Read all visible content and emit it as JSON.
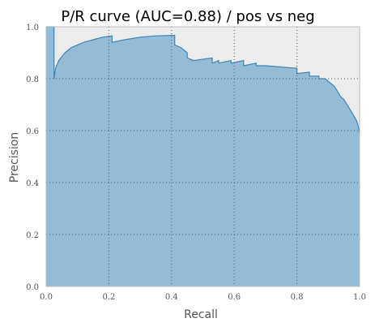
{
  "chart_data": {
    "type": "area",
    "title": "P/R curve (AUC=0.88) / pos vs neg",
    "xlabel": "Recall",
    "ylabel": "Precision",
    "xlim": [
      0.0,
      1.0
    ],
    "ylim": [
      0.0,
      1.0
    ],
    "xticks": [
      "0.0",
      "0.2",
      "0.4",
      "0.6",
      "0.8",
      "1.0"
    ],
    "yticks": [
      "0.0",
      "0.2",
      "0.4",
      "0.6",
      "0.8",
      "1.0"
    ],
    "grid": true,
    "legend": "none",
    "colors": {
      "fill": "#94bcd6",
      "line": "#3d86b3",
      "background": "#ececec",
      "frame": "#bdbdbd",
      "grid": "#555555"
    },
    "series": [
      {
        "x": [
          0.0,
          0.025,
          0.025,
          0.03,
          0.04,
          0.06,
          0.08,
          0.1,
          0.12,
          0.15,
          0.18,
          0.21,
          0.21,
          0.25,
          0.3,
          0.35,
          0.4,
          0.41,
          0.41,
          0.43,
          0.45,
          0.45,
          0.47,
          0.53,
          0.53,
          0.55,
          0.55,
          0.59,
          0.59,
          0.63,
          0.63,
          0.67,
          0.67,
          0.7,
          0.8,
          0.8,
          0.84,
          0.84,
          0.87,
          0.87,
          0.89,
          0.9,
          0.91,
          0.92,
          0.93,
          0.94,
          0.95,
          0.96,
          0.97,
          0.98,
          0.99,
          0.995,
          1.0
        ],
        "y": [
          1.0,
          1.0,
          0.8,
          0.84,
          0.87,
          0.9,
          0.92,
          0.93,
          0.94,
          0.95,
          0.96,
          0.965,
          0.94,
          0.95,
          0.96,
          0.965,
          0.967,
          0.967,
          0.93,
          0.92,
          0.9,
          0.88,
          0.87,
          0.88,
          0.86,
          0.87,
          0.86,
          0.87,
          0.86,
          0.87,
          0.85,
          0.86,
          0.85,
          0.85,
          0.84,
          0.82,
          0.825,
          0.81,
          0.81,
          0.8,
          0.8,
          0.79,
          0.78,
          0.77,
          0.75,
          0.73,
          0.72,
          0.7,
          0.68,
          0.66,
          0.64,
          0.62,
          0.59
        ]
      }
    ]
  }
}
